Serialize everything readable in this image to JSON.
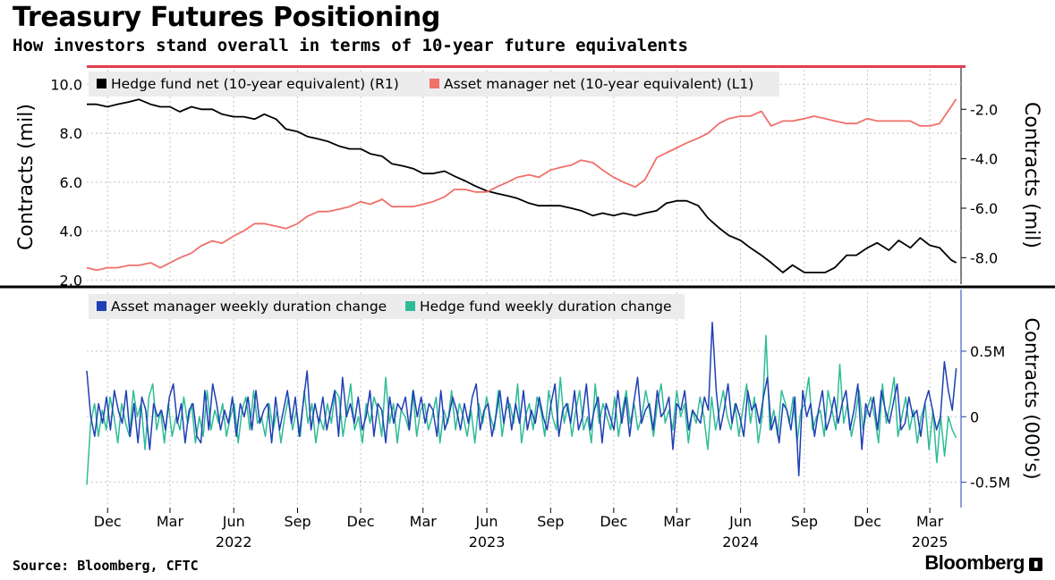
{
  "title": "Treasury Futures Positioning",
  "subtitle": "How investors stand overall in terms of 10-year future equivalents",
  "source": "Source: Bloomberg, CFTC",
  "brand": "Bloomberg",
  "colors": {
    "hedge_fund_net": "#000000",
    "asset_manager_net": "#f0706a",
    "asset_manager_weekly": "#1f3fb4",
    "hedge_fund_weekly": "#2ebc96",
    "top_bar": "#e0404f",
    "grid": "#c4c4c4"
  },
  "x_axis": {
    "months": [
      "Dec",
      "Mar",
      "Jun",
      "Sep",
      "Dec",
      "Mar",
      "Jun",
      "Sep",
      "Dec",
      "Mar",
      "Jun",
      "Sep",
      "Dec",
      "Mar"
    ],
    "years": [
      "2022",
      "2023",
      "2024",
      "2025"
    ],
    "range": [
      "2021-11-01",
      "2025-04-15"
    ]
  },
  "chart_data": [
    {
      "type": "line",
      "title": "Treasury Futures Positioning",
      "ylabel": "Contracts (mil)",
      "ylabel_right": "Contracts (mil)",
      "ylim": [
        1.9,
        10.6
      ],
      "ylim_right": [
        -9.0,
        -0.4
      ],
      "yticks": [
        "10.0",
        "8.0",
        "6.0",
        "4.0",
        "2.0"
      ],
      "yticks_right": [
        "-2.0",
        "-4.0",
        "-6.0",
        "-8.0"
      ],
      "grid": true,
      "legend": "top-left",
      "series": [
        {
          "name": "Hedge fund net (10-year equivalent) (R1)",
          "axis": "right",
          "x": [
            "2021-11-01",
            "2021-11-15",
            "2021-12-01",
            "2021-12-15",
            "2022-01-01",
            "2022-01-15",
            "2022-02-01",
            "2022-02-15",
            "2022-03-01",
            "2022-03-15",
            "2022-04-01",
            "2022-04-15",
            "2022-05-01",
            "2022-05-15",
            "2022-06-01",
            "2022-06-15",
            "2022-07-01",
            "2022-07-15",
            "2022-08-01",
            "2022-08-15",
            "2022-09-01",
            "2022-09-15",
            "2022-10-01",
            "2022-10-15",
            "2022-11-01",
            "2022-11-15",
            "2022-12-01",
            "2022-12-15",
            "2023-01-01",
            "2023-01-15",
            "2023-02-01",
            "2023-02-15",
            "2023-03-01",
            "2023-03-15",
            "2023-04-01",
            "2023-04-15",
            "2023-05-01",
            "2023-05-15",
            "2023-06-01",
            "2023-06-15",
            "2023-07-01",
            "2023-07-15",
            "2023-08-01",
            "2023-08-15",
            "2023-09-01",
            "2023-09-15",
            "2023-10-01",
            "2023-10-15",
            "2023-11-01",
            "2023-11-15",
            "2023-12-01",
            "2023-12-15",
            "2024-01-01",
            "2024-01-15",
            "2024-02-01",
            "2024-02-15",
            "2024-03-01",
            "2024-03-15",
            "2024-04-01",
            "2024-04-15",
            "2024-05-01",
            "2024-05-15",
            "2024-06-01",
            "2024-06-15",
            "2024-07-01",
            "2024-07-15",
            "2024-08-01",
            "2024-08-15",
            "2024-09-01",
            "2024-09-15",
            "2024-10-01",
            "2024-10-15",
            "2024-11-01",
            "2024-11-15",
            "2024-12-01",
            "2024-12-15",
            "2025-01-01",
            "2025-01-15",
            "2025-02-01",
            "2025-02-15",
            "2025-03-01",
            "2025-03-15",
            "2025-04-01",
            "2025-04-08"
          ],
          "values": [
            -1.8,
            -1.8,
            -1.9,
            -1.8,
            -1.7,
            -1.6,
            -1.8,
            -1.9,
            -1.9,
            -2.1,
            -1.9,
            -2.0,
            -2.0,
            -2.2,
            -2.3,
            -2.3,
            -2.4,
            -2.2,
            -2.4,
            -2.8,
            -2.9,
            -3.1,
            -3.2,
            -3.3,
            -3.5,
            -3.6,
            -3.6,
            -3.8,
            -3.9,
            -4.2,
            -4.3,
            -4.4,
            -4.6,
            -4.6,
            -4.5,
            -4.7,
            -4.9,
            -5.1,
            -5.3,
            -5.4,
            -5.5,
            -5.6,
            -5.8,
            -5.9,
            -5.9,
            -5.9,
            -6.0,
            -6.1,
            -6.3,
            -6.2,
            -6.3,
            -6.2,
            -6.3,
            -6.2,
            -6.1,
            -5.8,
            -5.7,
            -5.7,
            -5.9,
            -6.4,
            -6.8,
            -7.1,
            -7.3,
            -7.6,
            -7.9,
            -8.2,
            -8.6,
            -8.3,
            -8.6,
            -8.6,
            -8.6,
            -8.4,
            -7.9,
            -7.9,
            -7.6,
            -7.4,
            -7.7,
            -7.3,
            -7.6,
            -7.2,
            -7.5,
            -7.6,
            -8.1,
            -8.2
          ]
        },
        {
          "name": "Asset manager net (10-year equivalent) (L1)",
          "axis": "left",
          "x": [
            "2021-11-01",
            "2021-11-15",
            "2021-12-01",
            "2021-12-15",
            "2022-01-01",
            "2022-01-15",
            "2022-02-01",
            "2022-02-15",
            "2022-03-01",
            "2022-03-15",
            "2022-04-01",
            "2022-04-15",
            "2022-05-01",
            "2022-05-15",
            "2022-06-01",
            "2022-06-15",
            "2022-07-01",
            "2022-07-15",
            "2022-08-01",
            "2022-08-15",
            "2022-09-01",
            "2022-09-15",
            "2022-10-01",
            "2022-10-15",
            "2022-11-01",
            "2022-11-15",
            "2022-12-01",
            "2022-12-15",
            "2023-01-01",
            "2023-01-15",
            "2023-02-01",
            "2023-02-15",
            "2023-03-01",
            "2023-03-15",
            "2023-04-01",
            "2023-04-15",
            "2023-05-01",
            "2023-05-15",
            "2023-06-01",
            "2023-06-15",
            "2023-07-01",
            "2023-07-15",
            "2023-08-01",
            "2023-08-15",
            "2023-09-01",
            "2023-09-15",
            "2023-10-01",
            "2023-10-15",
            "2023-11-01",
            "2023-11-15",
            "2023-12-01",
            "2023-12-15",
            "2024-01-01",
            "2024-01-15",
            "2024-02-01",
            "2024-02-15",
            "2024-03-01",
            "2024-03-15",
            "2024-04-01",
            "2024-04-15",
            "2024-05-01",
            "2024-05-15",
            "2024-06-01",
            "2024-06-15",
            "2024-07-01",
            "2024-07-15",
            "2024-08-01",
            "2024-08-15",
            "2024-09-01",
            "2024-09-15",
            "2024-10-01",
            "2024-10-15",
            "2024-11-01",
            "2024-11-15",
            "2024-12-01",
            "2024-12-15",
            "2025-01-01",
            "2025-01-15",
            "2025-02-01",
            "2025-02-15",
            "2025-03-01",
            "2025-03-15",
            "2025-04-01",
            "2025-04-08"
          ],
          "values": [
            2.5,
            2.4,
            2.5,
            2.5,
            2.6,
            2.6,
            2.7,
            2.5,
            2.7,
            2.9,
            3.1,
            3.4,
            3.6,
            3.5,
            3.8,
            4.0,
            4.3,
            4.3,
            4.2,
            4.1,
            4.3,
            4.6,
            4.8,
            4.8,
            4.9,
            5.0,
            5.2,
            5.1,
            5.3,
            5.0,
            5.0,
            5.0,
            5.1,
            5.2,
            5.4,
            5.7,
            5.7,
            5.6,
            5.6,
            5.8,
            6.0,
            6.2,
            6.3,
            6.2,
            6.5,
            6.6,
            6.7,
            6.9,
            6.8,
            6.5,
            6.2,
            6.0,
            5.8,
            6.1,
            7.0,
            7.2,
            7.4,
            7.6,
            7.8,
            8.0,
            8.4,
            8.6,
            8.7,
            8.7,
            8.9,
            8.3,
            8.5,
            8.5,
            8.6,
            8.7,
            8.6,
            8.5,
            8.4,
            8.4,
            8.6,
            8.5,
            8.5,
            8.5,
            8.5,
            8.3,
            8.3,
            8.4,
            9.1,
            9.4
          ]
        }
      ]
    },
    {
      "type": "line",
      "ylabel_right": "Contracts (000's)",
      "ylim": [
        -0.68,
        0.95
      ],
      "yticks_right": [
        "0.5M",
        "0",
        "-0.5M"
      ],
      "grid": true,
      "legend": "top-left",
      "series": [
        {
          "name": "Asset manager weekly duration change",
          "x_range": [
            "2021-11-01",
            "2025-04-08"
          ],
          "values": [
            0.35,
            0.0,
            -0.15,
            0.1,
            -0.05,
            0.15,
            -0.1,
            0.2,
            0.05,
            -0.05,
            0.2,
            -0.15,
            0.1,
            -0.2,
            0.15,
            0.05,
            -0.25,
            0.1,
            0.0,
            0.05,
            -0.1,
            0.15,
            0.25,
            -0.05,
            0.1,
            -0.2,
            0.05,
            0.1,
            -0.15,
            -0.2,
            0.2,
            -0.1,
            0.25,
            0.1,
            -0.1,
            0.05,
            -0.05,
            0.15,
            -0.15,
            0.1,
            0.0,
            0.15,
            -0.1,
            0.2,
            -0.05,
            0.05,
            0.1,
            -0.2,
            0.15,
            -0.1,
            0.05,
            0.2,
            -0.05,
            0.15,
            -0.15,
            0.1,
            0.35,
            -0.1,
            0.1,
            -0.05,
            0.15,
            -0.1,
            0.05,
            0.2,
            -0.15,
            0.3,
            0.0,
            0.1,
            -0.05,
            0.15,
            -0.1,
            0.0,
            0.2,
            -0.15,
            0.1,
            0.05,
            -0.2,
            0.15,
            -0.05,
            0.1,
            0.05,
            0.15,
            -0.1,
            0.2,
            0.0,
            0.15,
            -0.05,
            0.1,
            0.05,
            -0.15,
            0.2,
            -0.1,
            0.0,
            0.15,
            0.05,
            -0.1,
            0.1,
            -0.05,
            0.15,
            0.25,
            -0.1,
            0.05,
            0.1,
            -0.15,
            0.0,
            0.2,
            -0.05,
            0.15,
            -0.1,
            0.1,
            -0.05,
            0.2,
            -0.1,
            0.05,
            -0.05,
            0.15,
            0.0,
            -0.1,
            0.1,
            0.25,
            -0.15,
            0.05,
            0.1,
            -0.05,
            0.2,
            -0.1,
            0.0,
            0.25,
            -0.1,
            0.05,
            0.15,
            -0.2,
            0.1,
            0.0,
            -0.1,
            0.2,
            -0.05,
            0.15,
            -0.15,
            0.1,
            0.3,
            -0.05,
            0.05,
            0.1,
            -0.1,
            0.2,
            0.0,
            0.05,
            0.15,
            -0.25,
            0.1,
            0.05,
            0.2,
            -0.1,
            0.05,
            0.0,
            -0.05,
            0.15,
            0.05,
            0.72,
            0.2,
            -0.1,
            0.05,
            0.25,
            -0.05,
            0.1,
            0.0,
            -0.15,
            0.2,
            0.05,
            0.1,
            -0.05,
            0.15,
            0.3,
            -0.1,
            0.0,
            -0.2,
            0.1,
            0.05,
            -0.1,
            0.15,
            -0.45,
            0.2,
            0.0,
            0.1,
            -0.15,
            0.05,
            0.2,
            -0.1,
            0.0,
            0.15,
            -0.05,
            0.1,
            0.2,
            -0.1,
            0.05,
            0.25,
            -0.25,
            0.1,
            0.0,
            0.15,
            -0.1,
            0.2,
            0.05,
            -0.05,
            0.1,
            0.25,
            -0.1,
            -0.05,
            0.15,
            0.0,
            0.05,
            -0.15,
            0.1,
            0.2,
            0.05,
            -0.1,
            0.0,
            0.42,
            0.2,
            0.05,
            0.37
          ]
        },
        {
          "name": "Hedge fund weekly duration change",
          "x_range": [
            "2021-11-01",
            "2025-04-08"
          ],
          "values": [
            -0.52,
            -0.05,
            0.1,
            -0.15,
            0.05,
            -0.1,
            0.15,
            0.0,
            -0.2,
            0.1,
            -0.05,
            -0.15,
            0.2,
            0.0,
            0.1,
            -0.25,
            0.15,
            0.25,
            -0.1,
            0.05,
            -0.2,
            0.1,
            -0.15,
            0.0,
            -0.1,
            0.15,
            -0.05,
            0.1,
            -0.2,
            0.0,
            -0.15,
            0.2,
            -0.1,
            0.05,
            -0.05,
            0.1,
            -0.15,
            0.0,
            0.1,
            -0.2,
            0.05,
            0.15,
            -0.1,
            0.2,
            -0.05,
            0.0,
            -0.15,
            0.1,
            -0.1,
            0.05,
            -0.2,
            0.0,
            0.15,
            -0.1,
            0.05,
            -0.15,
            0.2,
            -0.05,
            0.1,
            -0.2,
            0.0,
            -0.1,
            0.1,
            -0.05,
            0.2,
            0.15,
            -0.15,
            0.05,
            0.25,
            -0.1,
            0.0,
            -0.2,
            0.1,
            -0.05,
            0.15,
            0.05,
            -0.15,
            0.3,
            -0.05,
            0.1,
            -0.2,
            0.05,
            0.0,
            -0.1,
            0.2,
            -0.15,
            0.05,
            0.1,
            -0.1,
            0.0,
            0.15,
            -0.2,
            0.05,
            -0.05,
            0.2,
            -0.1,
            0.1,
            0.0,
            -0.15,
            0.05,
            -0.2,
            0.1,
            -0.05,
            0.15,
            0.0,
            -0.1,
            0.2,
            -0.15,
            0.05,
            0.1,
            -0.05,
            0.25,
            -0.2,
            0.0,
            0.1,
            -0.1,
            0.15,
            0.05,
            -0.15,
            0.2,
            0.0,
            -0.1,
            0.3,
            -0.05,
            0.1,
            -0.15,
            0.05,
            0.2,
            -0.1,
            0.0,
            -0.2,
            0.25,
            -0.05,
            0.1,
            0.0,
            -0.1,
            0.15,
            -0.15,
            0.05,
            0.2,
            -0.05,
            0.1,
            -0.1,
            0.0,
            0.2,
            0.05,
            -0.15,
            0.1,
            0.25,
            -0.05,
            0.05,
            -0.1,
            0.2,
            0.0,
            0.1,
            -0.2,
            0.05,
            -0.05,
            0.15,
            0.0,
            -0.25,
            0.15,
            -0.1,
            0.05,
            0.2,
            0.0,
            -0.1,
            0.1,
            -0.15,
            0.05,
            0.25,
            -0.05,
            0.15,
            -0.2,
            0.0,
            0.62,
            -0.1,
            0.05,
            -0.15,
            0.2,
            0.1,
            -0.05,
            0.15,
            -0.2,
            0.05,
            0.1,
            0.3,
            -0.1,
            0.0,
            0.05,
            -0.15,
            0.2,
            0.05,
            -0.1,
            0.4,
            -0.05,
            0.1,
            -0.15,
            0.0,
            0.2,
            -0.1,
            0.05,
            0.15,
            0.0,
            -0.2,
            0.25,
            -0.05,
            0.1,
            0.3,
            -0.15,
            0.0,
            0.15,
            -0.1,
            0.05,
            -0.2,
            0.0,
            0.1,
            -0.25,
            0.05,
            -0.35,
            0.0,
            -0.3,
            0.0,
            -0.1,
            -0.16
          ]
        }
      ]
    }
  ]
}
